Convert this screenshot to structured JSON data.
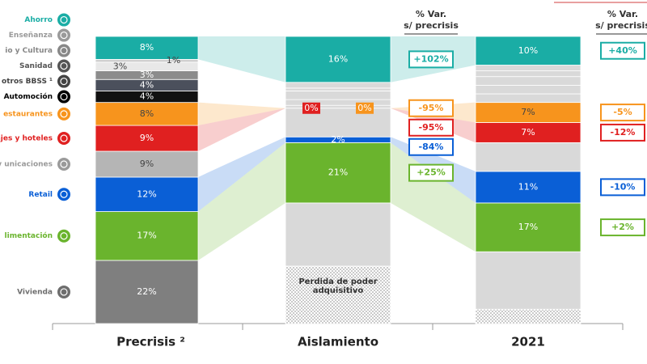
{
  "chart_data": {
    "type": "stacked-bar",
    "categories": [
      "Precrisis ²",
      "Aislamiento",
      "2021"
    ],
    "ylim": [
      0,
      100
    ],
    "change_header": [
      "% Var.",
      "s/ precrisis"
    ],
    "series": [
      {
        "name": "Ahorro",
        "color": "#1aada5",
        "colors": [
          "#1aada5",
          "#1aada5",
          "#1aada5"
        ],
        "values": [
          8,
          16,
          10
        ],
        "value_labels": [
          "8%",
          "16%",
          "10%"
        ],
        "changes": [
          null,
          102,
          40
        ],
        "change_labels": [
          null,
          "+102%",
          "+40%"
        ],
        "link": true
      },
      {
        "name": "Enseñanza",
        "color": "#9a9a9a",
        "colors": [
          "#d0d0d0",
          "#d9d9d9",
          "#d9d9d9"
        ],
        "values": [
          1,
          2,
          2
        ],
        "value_labels": [
          "1%",
          null,
          null
        ]
      },
      {
        "name": "io y Cultura",
        "color": "#888888",
        "colors": [
          "#e8e8e8",
          "#d9d9d9",
          "#d9d9d9"
        ],
        "values": [
          3,
          1,
          2
        ],
        "value_labels": [
          "3%",
          null,
          null
        ]
      },
      {
        "name": "Sanidad",
        "color": "#555555",
        "colors": [
          "#8c8c8c",
          "#d9d9d9",
          "#d9d9d9"
        ],
        "values": [
          3,
          3,
          3
        ],
        "value_labels": [
          "3%",
          null,
          null
        ]
      },
      {
        "name": "otros BBSS ¹",
        "color": "#444444",
        "colors": [
          "#4b505c",
          "#d9d9d9",
          "#d9d9d9"
        ],
        "values": [
          4,
          2,
          3
        ],
        "value_labels": [
          "4%",
          null,
          null
        ]
      },
      {
        "name": "Automoción",
        "color": "#000000",
        "colors": [
          "#111111",
          "#d9d9d9",
          "#d9d9d9"
        ],
        "values": [
          4,
          1,
          3
        ],
        "value_labels": [
          "4%",
          null,
          null
        ]
      },
      {
        "name": "estaurantes",
        "color": "#f7941d",
        "colors": [
          "#f7941d",
          "#f7941d",
          "#f7941d"
        ],
        "values": [
          8,
          0,
          7
        ],
        "value_labels": [
          "8%",
          "0%",
          "7%"
        ],
        "changes": [
          null,
          -95,
          -5
        ],
        "change_labels": [
          null,
          "-95%",
          "-5%"
        ],
        "link": true
      },
      {
        "name": "ajes y hoteles",
        "color": "#e02020",
        "colors": [
          "#e02020",
          "#e02020",
          "#e02020"
        ],
        "values": [
          9,
          0,
          7
        ],
        "value_labels": [
          "9%",
          "0%",
          "7%"
        ],
        "changes": [
          null,
          -95,
          -12
        ],
        "change_labels": [
          null,
          "-95%",
          "-12%"
        ],
        "link": true
      },
      {
        "name": "uministros y unicaciones",
        "color": "#9a9a9a",
        "colors": [
          "#b5b5b5",
          "#d9d9d9",
          "#d9d9d9"
        ],
        "values": [
          9,
          10,
          10
        ],
        "value_labels": [
          "9%",
          null,
          null
        ]
      },
      {
        "name": "Retail",
        "color": "#0a5fd6",
        "colors": [
          "#0a5fd6",
          "#0a5fd6",
          "#0a5fd6"
        ],
        "values": [
          12,
          2,
          11
        ],
        "value_labels": [
          "12%",
          "2%",
          "11%"
        ],
        "changes": [
          null,
          -84,
          -10
        ],
        "change_labels": [
          null,
          "-84%",
          "-10%"
        ],
        "link": true
      },
      {
        "name": "limentación",
        "color": "#6ab42d",
        "colors": [
          "#6ab42d",
          "#6ab42d",
          "#6ab42d"
        ],
        "values": [
          17,
          21,
          17
        ],
        "value_labels": [
          "17%",
          "21%",
          "17%"
        ],
        "changes": [
          null,
          25,
          2
        ],
        "change_labels": [
          null,
          "+25%",
          "+2%"
        ],
        "link": true
      },
      {
        "name": "Vivienda",
        "color": "#6e6e6e",
        "colors": [
          "#7f7f7f",
          "#d9d9d9",
          "#d9d9d9"
        ],
        "values": [
          22,
          22,
          20
        ],
        "value_labels": [
          "22%",
          null,
          null
        ]
      },
      {
        "name": "Perdida de poder adquisitivo",
        "color": "#8a8a8a",
        "pattern": "dots",
        "values": [
          null,
          20,
          5
        ]
      }
    ]
  }
}
